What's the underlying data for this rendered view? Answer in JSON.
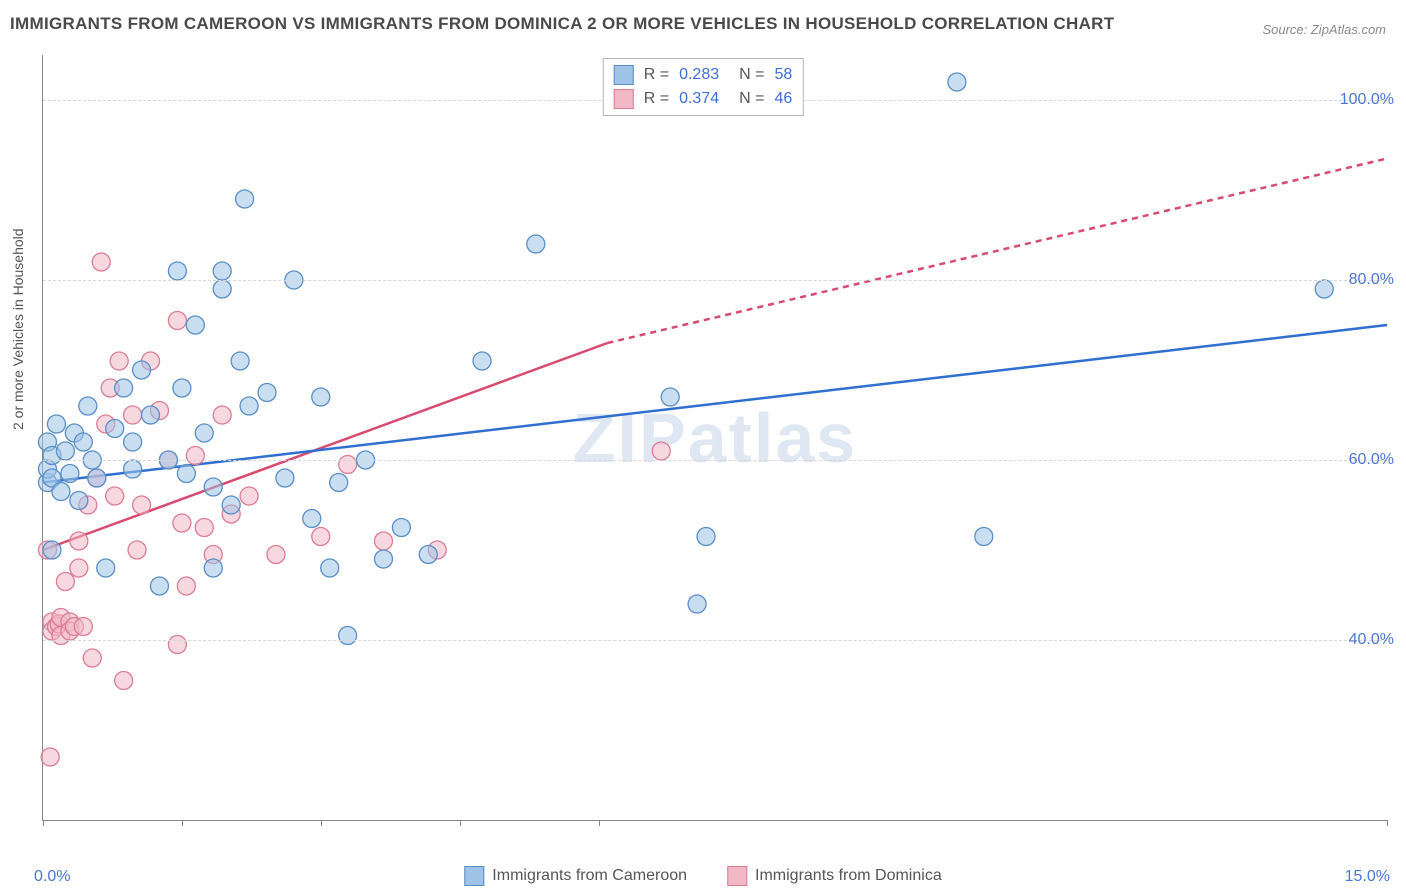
{
  "title": "IMMIGRANTS FROM CAMEROON VS IMMIGRANTS FROM DOMINICA 2 OR MORE VEHICLES IN HOUSEHOLD CORRELATION CHART",
  "source": "Source: ZipAtlas.com",
  "watermark": "ZIPatlas",
  "ylabel": "2 or more Vehicles in Household",
  "chart": {
    "type": "scatter",
    "xlim": [
      0.0,
      15.0
    ],
    "ylim": [
      20.0,
      105.0
    ],
    "yticks": [
      40.0,
      60.0,
      80.0,
      100.0
    ],
    "ytick_labels": [
      "40.0%",
      "60.0%",
      "80.0%",
      "100.0%"
    ],
    "xtick_positions": [
      0.0,
      1.55,
      3.1,
      4.65,
      6.2,
      15.0
    ],
    "xtick_labels_min": "0.0%",
    "xtick_labels_max": "15.0%",
    "grid_color": "#d7d7d7",
    "background_color": "#ffffff",
    "axis_color": "#888888",
    "series_a": {
      "label": "Immigrants from Cameroon",
      "fill": "#9ec3e6",
      "stroke": "#5a8fc7",
      "line_color": "#2f6fd0",
      "R": "0.283",
      "N": "58",
      "trend": {
        "x1": 0.0,
        "y1": 57.5,
        "x2": 15.0,
        "y2": 75.0,
        "dash_after_x": 15.0
      },
      "points": [
        [
          0.05,
          57.5
        ],
        [
          0.05,
          59.0
        ],
        [
          0.05,
          62.0
        ],
        [
          0.1,
          58.0
        ],
        [
          0.1,
          50.0
        ],
        [
          0.1,
          60.5
        ],
        [
          0.15,
          64.0
        ],
        [
          0.2,
          56.5
        ],
        [
          0.25,
          61.0
        ],
        [
          0.3,
          58.5
        ],
        [
          0.35,
          63.0
        ],
        [
          0.4,
          55.5
        ],
        [
          0.45,
          62.0
        ],
        [
          0.5,
          66.0
        ],
        [
          0.55,
          60.0
        ],
        [
          0.6,
          58.0
        ],
        [
          0.7,
          48.0
        ],
        [
          0.8,
          63.5
        ],
        [
          0.9,
          68.0
        ],
        [
          1.0,
          62.0
        ],
        [
          1.0,
          59.0
        ],
        [
          1.1,
          70.0
        ],
        [
          1.2,
          65.0
        ],
        [
          1.3,
          46.0
        ],
        [
          1.4,
          60.0
        ],
        [
          1.5,
          81.0
        ],
        [
          1.55,
          68.0
        ],
        [
          1.6,
          58.5
        ],
        [
          1.7,
          75.0
        ],
        [
          1.8,
          63.0
        ],
        [
          1.9,
          57.0
        ],
        [
          1.9,
          48.0
        ],
        [
          2.0,
          81.0
        ],
        [
          2.0,
          79.0
        ],
        [
          2.1,
          55.0
        ],
        [
          2.2,
          71.0
        ],
        [
          2.25,
          89.0
        ],
        [
          2.3,
          66.0
        ],
        [
          2.5,
          67.5
        ],
        [
          2.7,
          58.0
        ],
        [
          2.8,
          80.0
        ],
        [
          3.0,
          53.5
        ],
        [
          3.1,
          67.0
        ],
        [
          3.2,
          48.0
        ],
        [
          3.3,
          57.5
        ],
        [
          3.4,
          40.5
        ],
        [
          3.6,
          60.0
        ],
        [
          3.8,
          49.0
        ],
        [
          4.0,
          52.5
        ],
        [
          4.3,
          49.5
        ],
        [
          4.9,
          71.0
        ],
        [
          5.5,
          84.0
        ],
        [
          7.0,
          67.0
        ],
        [
          7.3,
          44.0
        ],
        [
          7.4,
          51.5
        ],
        [
          10.2,
          102.0
        ],
        [
          10.5,
          51.5
        ],
        [
          14.3,
          79.0
        ]
      ]
    },
    "series_b": {
      "label": "Immigrants from Dominica",
      "fill": "#f1b8c6",
      "stroke": "#dc7d96",
      "line_color": "#d84a6f",
      "R": "0.374",
      "N": "46",
      "trend": {
        "x1": 0.0,
        "y1": 50.0,
        "x2": 6.3,
        "y2": 73.0,
        "dash_to_x": 15.0,
        "dash_to_y": 93.5
      },
      "points": [
        [
          0.05,
          50.0
        ],
        [
          0.08,
          27.0
        ],
        [
          0.1,
          42.0
        ],
        [
          0.1,
          41.0
        ],
        [
          0.15,
          41.5
        ],
        [
          0.18,
          41.8
        ],
        [
          0.2,
          40.5
        ],
        [
          0.2,
          42.5
        ],
        [
          0.25,
          46.5
        ],
        [
          0.3,
          42.0
        ],
        [
          0.3,
          41.0
        ],
        [
          0.35,
          41.5
        ],
        [
          0.4,
          48.0
        ],
        [
          0.4,
          51.0
        ],
        [
          0.45,
          41.5
        ],
        [
          0.5,
          55.0
        ],
        [
          0.55,
          38.0
        ],
        [
          0.6,
          58.0
        ],
        [
          0.65,
          82.0
        ],
        [
          0.7,
          64.0
        ],
        [
          0.75,
          68.0
        ],
        [
          0.8,
          56.0
        ],
        [
          0.85,
          71.0
        ],
        [
          0.9,
          35.5
        ],
        [
          1.0,
          65.0
        ],
        [
          1.05,
          50.0
        ],
        [
          1.1,
          55.0
        ],
        [
          1.2,
          71.0
        ],
        [
          1.3,
          65.5
        ],
        [
          1.4,
          60.0
        ],
        [
          1.5,
          39.5
        ],
        [
          1.5,
          75.5
        ],
        [
          1.55,
          53.0
        ],
        [
          1.6,
          46.0
        ],
        [
          1.7,
          60.5
        ],
        [
          1.8,
          52.5
        ],
        [
          1.9,
          49.5
        ],
        [
          2.0,
          65.0
        ],
        [
          2.1,
          54.0
        ],
        [
          2.3,
          56.0
        ],
        [
          2.6,
          49.5
        ],
        [
          3.1,
          51.5
        ],
        [
          3.4,
          59.5
        ],
        [
          3.8,
          51.0
        ],
        [
          4.4,
          50.0
        ],
        [
          6.9,
          61.0
        ]
      ]
    }
  }
}
